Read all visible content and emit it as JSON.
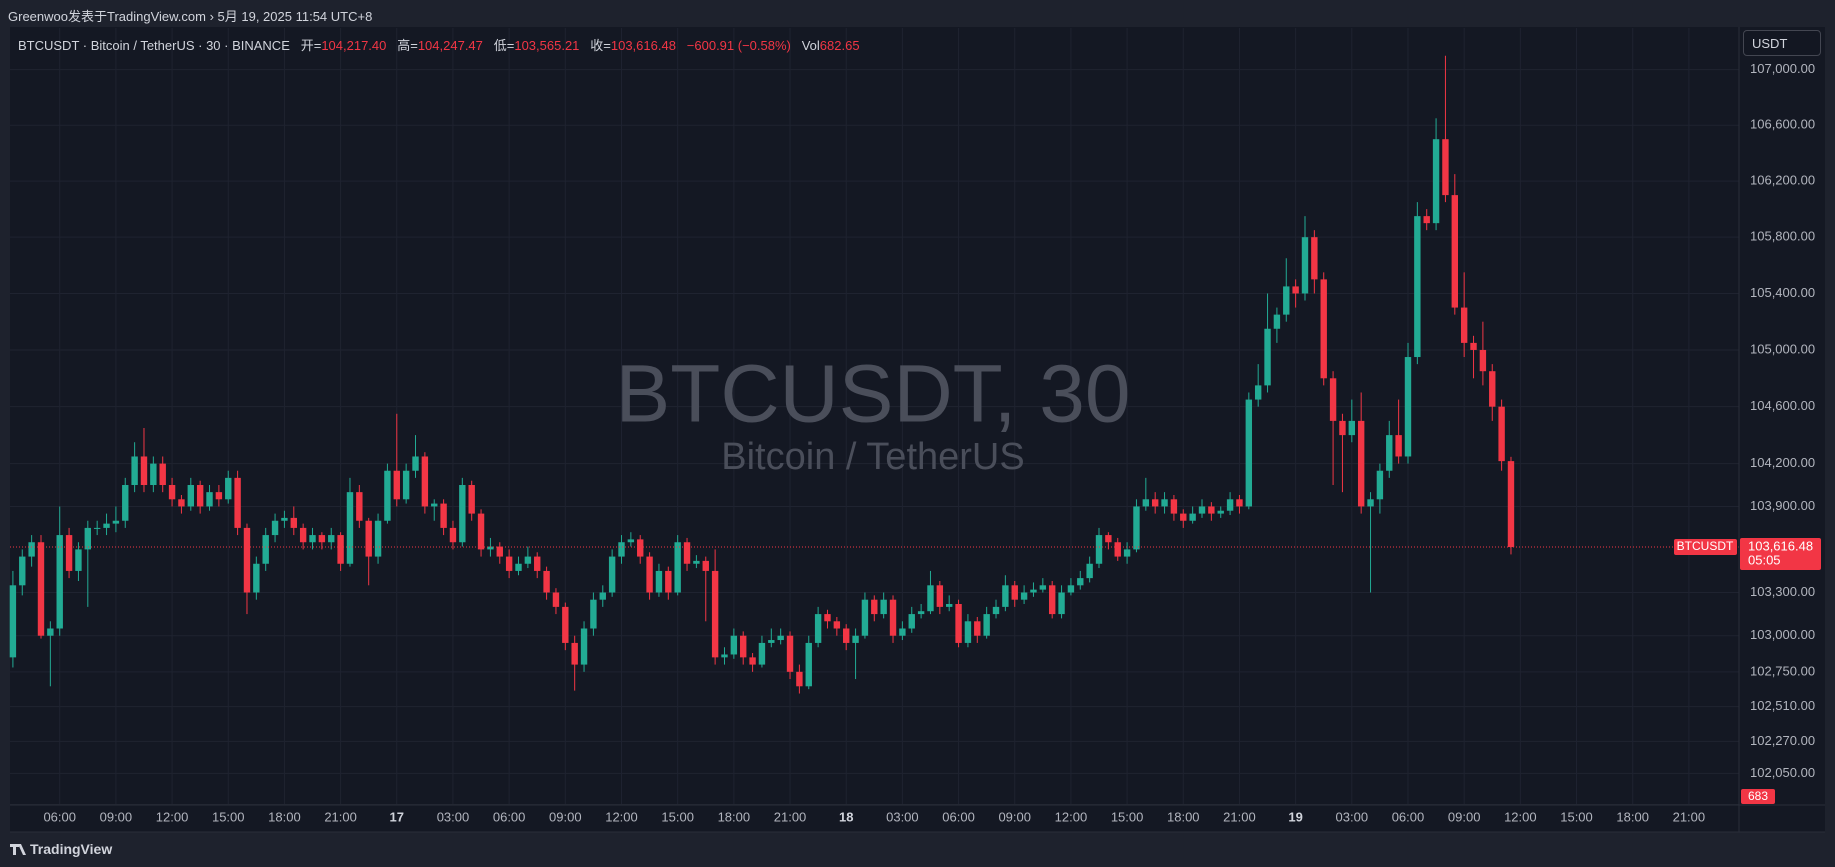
{
  "header": {
    "text": "Greenwoo发表于TradingView.com › 5月 19, 2025 11:54 UTC+8"
  },
  "footer": {
    "brand": "TradingView"
  },
  "chart_data": {
    "type": "candlestick",
    "title": "BTCUSDT, 30",
    "subtitle": "Bitcoin / TetherUS",
    "legend": {
      "symbol": "BTCUSDT · Bitcoin / TetherUS · 30 · BINANCE",
      "items": [
        {
          "label": "开=",
          "value": "104,217.40"
        },
        {
          "label": "高=",
          "value": "104,247.47"
        },
        {
          "label": "低=",
          "value": "103,565.21"
        },
        {
          "label": "收=",
          "value": "103,616.48"
        }
      ],
      "change": "−600.91 (−0.58%)",
      "vol_label": "Vol",
      "vol": "682.65"
    },
    "currency_button": "USDT",
    "symbol_tag": "BTCUSDT",
    "last_price_label": "103,616.48",
    "countdown": "05:05",
    "volume_tag": "683",
    "up_color": "#22ab94",
    "down_color": "#f23645",
    "grid": true,
    "log_scale": true,
    "ylim": [
      101840,
      107300
    ],
    "yticks": [
      {
        "value": 102050,
        "label": "102,050.00"
      },
      {
        "value": 102270,
        "label": "102,270.00"
      },
      {
        "value": 102510,
        "label": "102,510.00"
      },
      {
        "value": 102750,
        "label": "102,750.00"
      },
      {
        "value": 103000,
        "label": "103,000.00"
      },
      {
        "value": 103300,
        "label": "103,300.00"
      },
      {
        "value": 103900,
        "label": "103,900.00"
      },
      {
        "value": 104200,
        "label": "104,200.00"
      },
      {
        "value": 104600,
        "label": "104,600.00"
      },
      {
        "value": 105000,
        "label": "105,000.00"
      },
      {
        "value": 105400,
        "label": "105,400.00"
      },
      {
        "value": 105800,
        "label": "105,800.00"
      },
      {
        "value": 106200,
        "label": "106,200.00"
      },
      {
        "value": 106600,
        "label": "106,600.00"
      },
      {
        "value": 107000,
        "label": "107,000.00"
      }
    ],
    "categories": [
      null,
      null,
      null,
      null,
      null,
      "06:00",
      null,
      null,
      null,
      null,
      null,
      "09:00",
      null,
      null,
      null,
      null,
      null,
      "12:00",
      null,
      null,
      null,
      null,
      null,
      "15:00",
      null,
      null,
      null,
      null,
      null,
      "18:00",
      null,
      null,
      null,
      null,
      null,
      "21:00",
      null,
      null,
      null,
      null,
      null,
      "17",
      null,
      null,
      null,
      null,
      null,
      "03:00",
      null,
      null,
      null,
      null,
      null,
      "06:00",
      null,
      null,
      null,
      null,
      null,
      "09:00",
      null,
      null,
      null,
      null,
      null,
      "12:00",
      null,
      null,
      null,
      null,
      null,
      "15:00",
      null,
      null,
      null,
      null,
      null,
      "18:00",
      null,
      null,
      null,
      null,
      null,
      "21:00",
      null,
      null,
      null,
      null,
      null,
      "18",
      null,
      null,
      null,
      null,
      null,
      "03:00",
      null,
      null,
      null,
      null,
      null,
      "06:00",
      null,
      null,
      null,
      null,
      null,
      "09:00",
      null,
      null,
      null,
      null,
      null,
      "12:00",
      null,
      null,
      null,
      null,
      null,
      "15:00",
      null,
      null,
      null,
      null,
      null,
      "18:00",
      null,
      null,
      null,
      null,
      null,
      "21:00",
      null,
      null,
      null,
      null,
      null,
      "19",
      null,
      null,
      null,
      null,
      null,
      "03:00",
      null,
      null,
      null,
      null,
      null,
      "06:00",
      null,
      null,
      null,
      null,
      null,
      "09:00",
      null,
      null,
      null,
      null,
      null,
      "12:00",
      null,
      null,
      null,
      null,
      null,
      "15:00",
      null,
      null,
      null,
      null,
      null,
      "18:00",
      null,
      null,
      null,
      null,
      null,
      "21:00",
      null,
      null,
      null,
      null,
      null
    ],
    "values": [
      [
        102850,
        103450,
        102780,
        103350
      ],
      [
        103350,
        103600,
        103280,
        103550
      ],
      [
        103550,
        103700,
        103480,
        103650
      ],
      [
        103650,
        103700,
        102980,
        103000
      ],
      [
        103000,
        103100,
        102650,
        103050
      ],
      [
        103050,
        103900,
        103000,
        103700
      ],
      [
        103700,
        103750,
        103400,
        103450
      ],
      [
        103450,
        103650,
        103380,
        103600
      ],
      [
        103600,
        103800,
        103200,
        103750
      ],
      [
        103750,
        103800,
        103700,
        103750
      ],
      [
        103750,
        103850,
        103700,
        103780
      ],
      [
        103780,
        103900,
        103720,
        103800
      ],
      [
        103800,
        104100,
        103750,
        104050
      ],
      [
        104050,
        104350,
        104000,
        104250
      ],
      [
        104250,
        104450,
        104000,
        104050
      ],
      [
        104050,
        104250,
        104000,
        104200
      ],
      [
        104200,
        104250,
        104000,
        104050
      ],
      [
        104050,
        104100,
        103900,
        103950
      ],
      [
        103950,
        103980,
        103850,
        103900
      ],
      [
        103900,
        104100,
        103870,
        104050
      ],
      [
        104050,
        104080,
        103850,
        103900
      ],
      [
        103900,
        104050,
        103870,
        104000
      ],
      [
        104000,
        104050,
        103900,
        103950
      ],
      [
        103950,
        104150,
        103920,
        104100
      ],
      [
        104100,
        104150,
        103700,
        103750
      ],
      [
        103750,
        103780,
        103150,
        103300
      ],
      [
        103300,
        103550,
        103250,
        103500
      ],
      [
        103500,
        103750,
        103450,
        103700
      ],
      [
        103700,
        103850,
        103650,
        103800
      ],
      [
        103800,
        103870,
        103750,
        103820
      ],
      [
        103820,
        103900,
        103700,
        103750
      ],
      [
        103750,
        103780,
        103600,
        103650
      ],
      [
        103650,
        103750,
        103600,
        103700
      ],
      [
        103700,
        103720,
        103600,
        103650
      ],
      [
        103650,
        103750,
        103600,
        103700
      ],
      [
        103700,
        103720,
        103450,
        103500
      ],
      [
        103500,
        104100,
        103480,
        104000
      ],
      [
        104000,
        104050,
        103750,
        103800
      ],
      [
        103800,
        103820,
        103350,
        103550
      ],
      [
        103550,
        103850,
        103500,
        103800
      ],
      [
        103800,
        104200,
        103780,
        104150
      ],
      [
        104150,
        104550,
        103900,
        103950
      ],
      [
        103950,
        104200,
        103920,
        104150
      ],
      [
        104150,
        104400,
        104100,
        104250
      ],
      [
        104250,
        104280,
        103850,
        103900
      ],
      [
        103900,
        103950,
        103800,
        103920
      ],
      [
        103920,
        103950,
        103700,
        103750
      ],
      [
        103750,
        103800,
        103600,
        103650
      ],
      [
        103650,
        104100,
        103620,
        104050
      ],
      [
        104050,
        104080,
        103800,
        103850
      ],
      [
        103850,
        103880,
        103550,
        103600
      ],
      [
        103600,
        103680,
        103550,
        103620
      ],
      [
        103620,
        103650,
        103500,
        103550
      ],
      [
        103550,
        103600,
        103400,
        103450
      ],
      [
        103450,
        103550,
        103420,
        103500
      ],
      [
        103500,
        103620,
        103470,
        103550
      ],
      [
        103550,
        103580,
        103400,
        103450
      ],
      [
        103450,
        103480,
        103250,
        103300
      ],
      [
        103300,
        103330,
        103150,
        103200
      ],
      [
        103200,
        103230,
        102900,
        102950
      ],
      [
        102950,
        103000,
        102620,
        102800
      ],
      [
        102800,
        103100,
        102750,
        103050
      ],
      [
        103050,
        103300,
        103000,
        103250
      ],
      [
        103250,
        103350,
        103200,
        103300
      ],
      [
        103300,
        103600,
        103270,
        103550
      ],
      [
        103550,
        103700,
        103500,
        103650
      ],
      [
        103650,
        103720,
        103620,
        103670
      ],
      [
        103670,
        103700,
        103500,
        103550
      ],
      [
        103550,
        103580,
        103250,
        103300
      ],
      [
        103300,
        103500,
        103270,
        103450
      ],
      [
        103450,
        103480,
        103250,
        103300
      ],
      [
        103300,
        103700,
        103280,
        103650
      ],
      [
        103650,
        103680,
        103450,
        103500
      ],
      [
        103500,
        103560,
        103470,
        103520
      ],
      [
        103520,
        103550,
        103100,
        103450
      ],
      [
        103450,
        103600,
        102800,
        102850
      ],
      [
        102850,
        102920,
        102800,
        102870
      ],
      [
        102870,
        103050,
        102840,
        103000
      ],
      [
        103000,
        103030,
        102800,
        102850
      ],
      [
        102850,
        102880,
        102750,
        102800
      ],
      [
        102800,
        103000,
        102780,
        102950
      ],
      [
        102950,
        103050,
        102920,
        102970
      ],
      [
        102970,
        103050,
        102940,
        103000
      ],
      [
        103000,
        103030,
        102700,
        102750
      ],
      [
        102750,
        102800,
        102600,
        102650
      ],
      [
        102650,
        103000,
        102630,
        102950
      ],
      [
        102950,
        103200,
        102920,
        103150
      ],
      [
        103150,
        103180,
        103050,
        103100
      ],
      [
        103100,
        103130,
        103000,
        103050
      ],
      [
        103050,
        103080,
        102900,
        102950
      ],
      [
        102950,
        103050,
        102700,
        103000
      ],
      [
        103000,
        103300,
        102980,
        103250
      ],
      [
        103250,
        103280,
        103100,
        103150
      ],
      [
        103150,
        103300,
        103120,
        103250
      ],
      [
        103250,
        103280,
        102950,
        103000
      ],
      [
        103000,
        103100,
        102970,
        103050
      ],
      [
        103050,
        103200,
        103020,
        103150
      ],
      [
        103150,
        103220,
        103120,
        103170
      ],
      [
        103170,
        103450,
        103150,
        103350
      ],
      [
        103350,
        103380,
        103150,
        103200
      ],
      [
        103200,
        103280,
        103170,
        103220
      ],
      [
        103220,
        103250,
        102920,
        102950
      ],
      [
        102950,
        103150,
        102920,
        103100
      ],
      [
        103100,
        103130,
        102950,
        103000
      ],
      [
        103000,
        103200,
        102980,
        103150
      ],
      [
        103150,
        103250,
        103120,
        103200
      ],
      [
        103200,
        103420,
        103170,
        103350
      ],
      [
        103350,
        103380,
        103200,
        103250
      ],
      [
        103250,
        103350,
        103220,
        103300
      ],
      [
        103300,
        103370,
        103270,
        103320
      ],
      [
        103320,
        103400,
        103300,
        103350
      ],
      [
        103350,
        103380,
        103120,
        103150
      ],
      [
        103150,
        103350,
        103120,
        103300
      ],
      [
        103300,
        103400,
        103280,
        103350
      ],
      [
        103350,
        103450,
        103320,
        103400
      ],
      [
        103400,
        103550,
        103370,
        103500
      ],
      [
        103500,
        103750,
        103470,
        103700
      ],
      [
        103700,
        103720,
        103600,
        103650
      ],
      [
        103650,
        103680,
        103520,
        103550
      ],
      [
        103550,
        103650,
        103500,
        103600
      ],
      [
        103600,
        103950,
        103580,
        103900
      ],
      [
        103900,
        104100,
        103870,
        103950
      ],
      [
        103950,
        104000,
        103850,
        103900
      ],
      [
        103900,
        104000,
        103850,
        103950
      ],
      [
        103950,
        103980,
        103800,
        103850
      ],
      [
        103850,
        103880,
        103750,
        103800
      ],
      [
        103800,
        103900,
        103780,
        103850
      ],
      [
        103850,
        103950,
        103820,
        103900
      ],
      [
        103900,
        103930,
        103800,
        103850
      ],
      [
        103850,
        103900,
        103820,
        103870
      ],
      [
        103870,
        104000,
        103840,
        103950
      ],
      [
        103950,
        103980,
        103850,
        103900
      ],
      [
        103900,
        104700,
        103880,
        104650
      ],
      [
        104650,
        104900,
        104600,
        104750
      ],
      [
        104750,
        105400,
        104700,
        105150
      ],
      [
        105150,
        105300,
        105050,
        105250
      ],
      [
        105250,
        105650,
        105200,
        105450
      ],
      [
        105450,
        105500,
        105300,
        105400
      ],
      [
        105400,
        105950,
        105350,
        105800
      ],
      [
        105800,
        105850,
        105400,
        105500
      ],
      [
        105500,
        105550,
        104750,
        104800
      ],
      [
        104800,
        104850,
        104050,
        104500
      ],
      [
        104500,
        104550,
        104000,
        104400
      ],
      [
        104400,
        104650,
        104350,
        104500
      ],
      [
        104500,
        104700,
        103850,
        103900
      ],
      [
        103900,
        104000,
        103300,
        103950
      ],
      [
        103950,
        104200,
        103850,
        104150
      ],
      [
        104150,
        104500,
        104100,
        104400
      ],
      [
        104400,
        104650,
        104200,
        104250
      ],
      [
        104250,
        105050,
        104200,
        104950
      ],
      [
        104950,
        106050,
        104900,
        105950
      ],
      [
        105950,
        106000,
        105850,
        105900
      ],
      [
        105900,
        106650,
        105850,
        106500
      ],
      [
        106500,
        107100,
        106050,
        106100
      ],
      [
        106100,
        106250,
        105250,
        105300
      ],
      [
        105300,
        105550,
        104950,
        105050
      ],
      [
        105050,
        105100,
        104800,
        105000
      ],
      [
        105000,
        105200,
        104750,
        104850
      ],
      [
        104850,
        104900,
        104500,
        104600
      ],
      [
        104600,
        104650,
        104150,
        104217.4
      ],
      [
        104217.4,
        104247.47,
        103565.21,
        103616.48
      ],
      null,
      null,
      null,
      null,
      null,
      null,
      null,
      null,
      null,
      null,
      null,
      null,
      null,
      null,
      null,
      null,
      null,
      null,
      null,
      null,
      null,
      null,
      null,
      null
    ]
  }
}
